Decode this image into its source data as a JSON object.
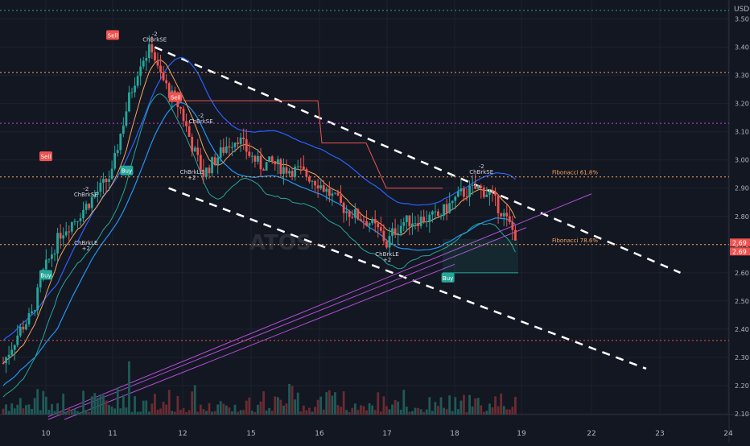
{
  "chart_data": {
    "type": "candlestick",
    "currency": "USD",
    "watermark": "ATOS",
    "ylim": [
      2.08,
      3.55
    ],
    "y_ticks": [
      "3.50",
      "3.40",
      "3.30",
      "3.20",
      "3.10",
      "3.00",
      "2.90",
      "2.80",
      "2.70",
      "2.60",
      "2.50",
      "2.40",
      "2.30",
      "2.20",
      "2.10"
    ],
    "x_ticks": [
      "10",
      "11",
      "12",
      "15",
      "16",
      "17",
      "18",
      "19",
      "22",
      "23",
      "24"
    ],
    "price_labels": [
      "2.69",
      "2.69"
    ],
    "price_level": 2.69,
    "levels": [
      {
        "name": "Fibonacci 61.8%",
        "value": 2.94,
        "color": "#f7a35c"
      },
      {
        "name": "Fibonacci 78.6%",
        "value": 2.7,
        "color": "#f7a35c"
      },
      {
        "name": "",
        "value": 3.53,
        "color": "#26a69a"
      },
      {
        "name": "",
        "value": 3.31,
        "color": "#f7a35c"
      },
      {
        "name": "",
        "value": 3.13,
        "color": "#c13fdb"
      },
      {
        "name": "",
        "value": 2.36,
        "color": "#ef5350"
      }
    ],
    "signals": [
      {
        "label": "Sell",
        "kind": "sell-badge",
        "day": "10",
        "price": 3.01
      },
      {
        "label": "Sell",
        "kind": "sell-badge",
        "day": "11",
        "price": 3.44
      },
      {
        "label": "Sell",
        "kind": "sell-badge",
        "day": "11.9",
        "price": 3.22
      },
      {
        "label": "Buy",
        "kind": "buy-badge",
        "day": "10",
        "price": 2.59
      },
      {
        "label": "Buy",
        "kind": "buy-badge",
        "day": "11.2",
        "price": 2.96
      },
      {
        "label": "Buy",
        "kind": "buy-badge",
        "day": "17.9",
        "price": 2.58
      }
    ],
    "annotations": [
      {
        "text": "-2",
        "price": 3.44,
        "day": "11.6"
      },
      {
        "text": "ChBrkSE",
        "price": 3.42,
        "day": "11.6"
      },
      {
        "text": "-2",
        "price": 2.89,
        "day": "10.6"
      },
      {
        "text": "ChBrkSE",
        "price": 2.87,
        "day": "10.6"
      },
      {
        "text": "ChBrkLE",
        "price": 2.7,
        "day": "10.6"
      },
      {
        "text": "+2",
        "price": 2.68,
        "day": "10.6"
      },
      {
        "text": "-2",
        "price": 3.15,
        "day": "12.8"
      },
      {
        "text": "ChBrkSE",
        "price": 3.13,
        "day": "12.8"
      },
      {
        "text": "ChBrkLE",
        "price": 2.95,
        "day": "12.4"
      },
      {
        "text": "+2",
        "price": 2.93,
        "day": "12.4"
      },
      {
        "text": "ChBrkLE",
        "price": 2.66,
        "day": "17"
      },
      {
        "text": "+2",
        "price": 2.64,
        "day": "17"
      },
      {
        "text": "-2",
        "price": 2.97,
        "day": "18.4"
      },
      {
        "text": "ChBrkSE",
        "price": 2.95,
        "day": "18.4"
      }
    ]
  }
}
